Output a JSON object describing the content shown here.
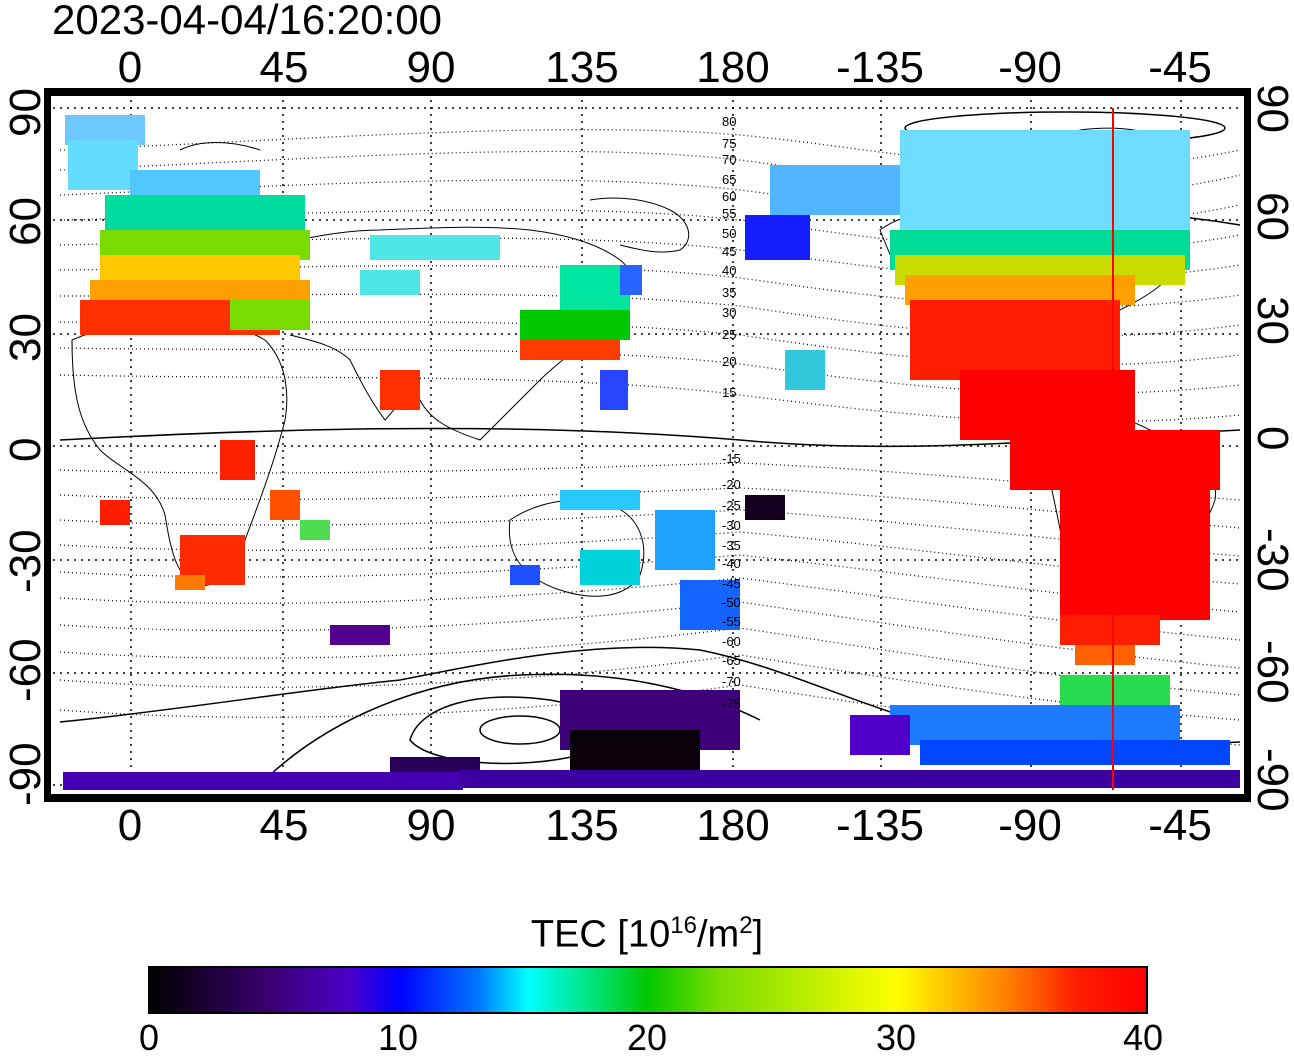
{
  "timestamp": "2023-04-04/16:20:00",
  "lon_ticks": [
    "0",
    "45",
    "90",
    "135",
    "180",
    "-135",
    "-90",
    "-45"
  ],
  "lat_ticks": [
    "90",
    "60",
    "30",
    "0",
    "-30",
    "-60",
    "-90"
  ],
  "contour_labels": [
    "80",
    "75",
    "70",
    "65",
    "60",
    "55",
    "50",
    "45",
    "40",
    "35",
    "30",
    "25",
    "20",
    "15",
    "-15",
    "-20",
    "-25",
    "-30",
    "-35",
    "-40",
    "-45",
    "-50",
    "-55",
    "-60",
    "-65",
    "-70",
    "-75"
  ],
  "colorbar": {
    "title_main": "TEC  [10",
    "title_exp1": "16",
    "title_mid": "/m",
    "title_exp2": "2",
    "title_end": "]",
    "labels": [
      "0",
      "10",
      "20",
      "30",
      "40"
    ],
    "min": 0,
    "max": 40,
    "colors": [
      "#000000",
      "#4b00c8",
      "#0000ff",
      "#00ffff",
      "#00c800",
      "#ffff00",
      "#ff8000",
      "#ff0000"
    ]
  },
  "map": {
    "lon_range": [
      -20,
      340
    ],
    "lat_range": [
      -90,
      90
    ],
    "terminator_lon": -70,
    "terminator_color": "#ff0000"
  }
}
